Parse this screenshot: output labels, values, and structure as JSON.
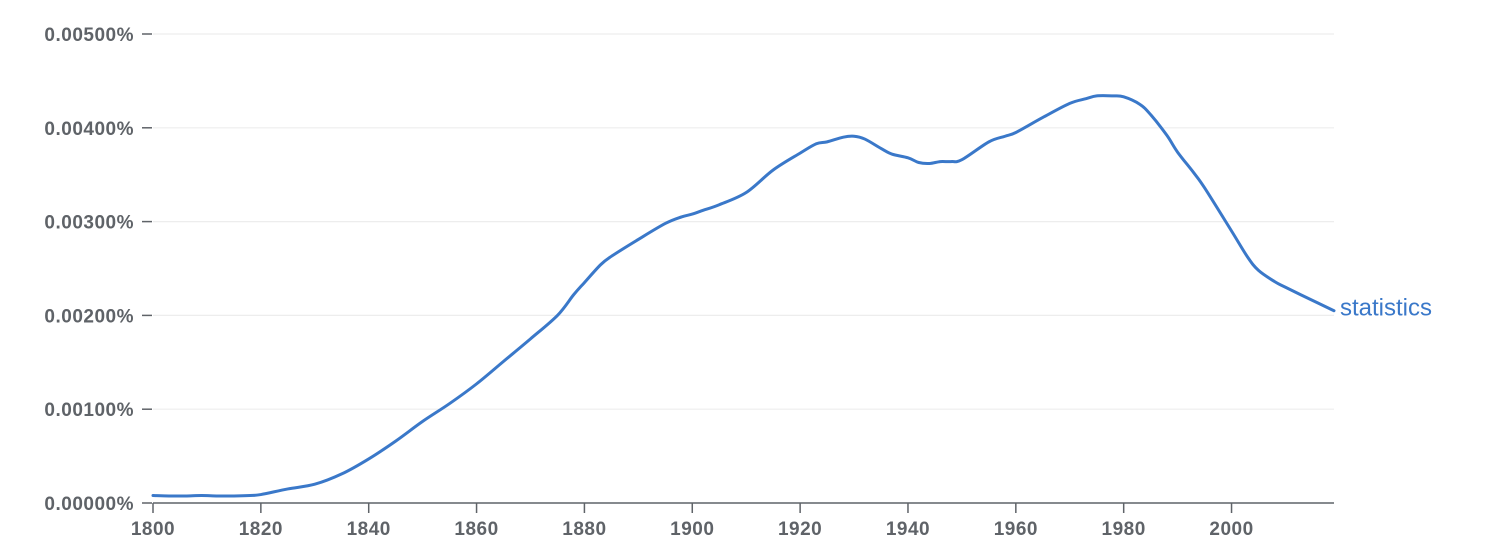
{
  "chart_data": {
    "type": "line",
    "title": "",
    "xlabel": "",
    "ylabel": "",
    "xlim": [
      1800,
      2019
    ],
    "ylim": [
      0,
      0.005
    ],
    "x_ticks": [
      1800,
      1820,
      1840,
      1860,
      1880,
      1900,
      1920,
      1940,
      1960,
      1980,
      2000
    ],
    "y_ticks": [
      0,
      0.001,
      0.002,
      0.003,
      0.004,
      0.005
    ],
    "y_tick_labels": [
      "0.00000%",
      "0.00100%",
      "0.00200%",
      "0.00300%",
      "0.00400%",
      "0.00500%"
    ],
    "grid": "horizontal",
    "legend": "series label at line end",
    "colors": {
      "series": "#3a78c9",
      "grid": "#ededed",
      "axis": "#5f6368",
      "tick_text": "#5f6368"
    },
    "series": [
      {
        "name": "statistics",
        "x": [
          1800,
          1803,
          1806,
          1809,
          1812,
          1815,
          1818,
          1820,
          1825,
          1830,
          1835,
          1840,
          1845,
          1850,
          1855,
          1860,
          1865,
          1870,
          1875,
          1878,
          1880,
          1883,
          1885,
          1890,
          1895,
          1898,
          1900,
          1902,
          1905,
          1910,
          1915,
          1920,
          1923,
          1925,
          1928,
          1930,
          1932,
          1935,
          1937,
          1940,
          1942,
          1944,
          1946,
          1948,
          1950,
          1955,
          1958,
          1960,
          1965,
          1970,
          1973,
          1975,
          1978,
          1980,
          1983,
          1985,
          1988,
          1990,
          1993,
          1995,
          2000,
          2003,
          2005,
          2008,
          2010,
          2015,
          2019
        ],
        "values": [
          8e-05,
          7.5e-05,
          7.5e-05,
          8e-05,
          7.5e-05,
          7.5e-05,
          8e-05,
          9e-05,
          0.00015,
          0.0002,
          0.00031,
          0.00047,
          0.00066,
          0.00087,
          0.00106,
          0.00127,
          0.00151,
          0.00175,
          0.002,
          0.00222,
          0.00235,
          0.00254,
          0.00263,
          0.00281,
          0.00298,
          0.00305,
          0.00308,
          0.00312,
          0.00318,
          0.00331,
          0.00355,
          0.00373,
          0.00383,
          0.00385,
          0.0039,
          0.00391,
          0.00388,
          0.00378,
          0.00372,
          0.00368,
          0.00363,
          0.00362,
          0.00364,
          0.00364,
          0.00366,
          0.00385,
          0.00391,
          0.00395,
          0.00411,
          0.00426,
          0.00431,
          0.00434,
          0.00434,
          0.00433,
          0.00425,
          0.00414,
          0.00392,
          0.00374,
          0.00352,
          0.00336,
          0.0029,
          0.00262,
          0.00248,
          0.00236,
          0.0023,
          0.00216,
          0.00205
        ]
      }
    ]
  }
}
